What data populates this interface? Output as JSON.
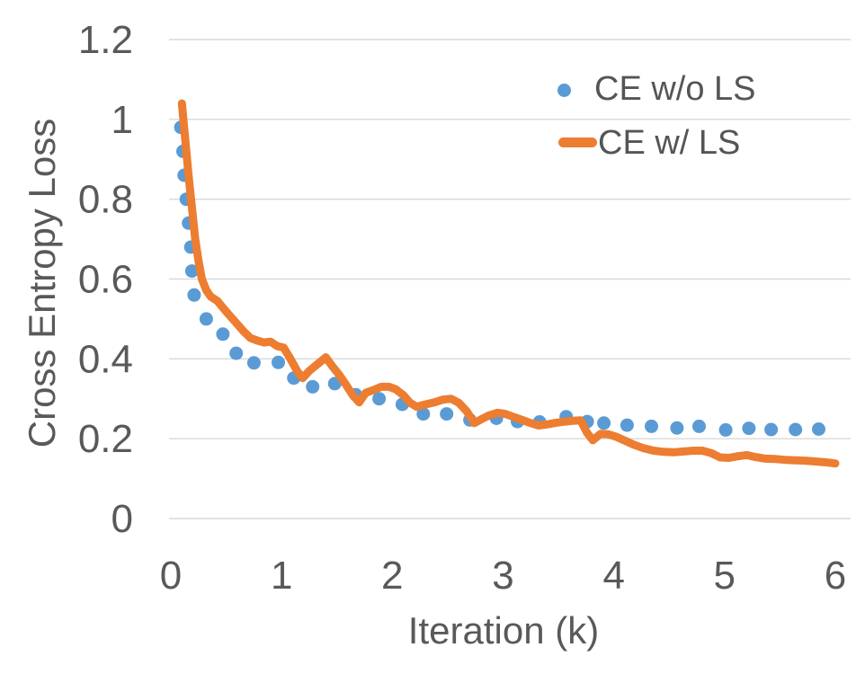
{
  "chart_data": {
    "type": "line",
    "title": "",
    "xlabel": "Iteration (k)",
    "ylabel": "Cross Entropy Loss",
    "xlim": [
      0,
      6
    ],
    "ylim": [
      0,
      1.2
    ],
    "grid": "horizontal",
    "legend_position": "top-right-inside",
    "colors": {
      "text": "#595959",
      "gridline": "#D9D9D9",
      "background": "#FFFFFF",
      "series_blue": "#5B9BD5",
      "series_orange": "#ED7D31"
    },
    "x_ticks": [
      {
        "value": 0,
        "label": "0"
      },
      {
        "value": 1,
        "label": "1"
      },
      {
        "value": 2,
        "label": "2"
      },
      {
        "value": 3,
        "label": "3"
      },
      {
        "value": 4,
        "label": "4"
      },
      {
        "value": 5,
        "label": "5"
      },
      {
        "value": 6,
        "label": "6"
      }
    ],
    "y_ticks": [
      {
        "value": 0,
        "label": "0"
      },
      {
        "value": 0.2,
        "label": "0.2"
      },
      {
        "value": 0.4,
        "label": "0.4"
      },
      {
        "value": 0.6,
        "label": "0.6"
      },
      {
        "value": 0.8,
        "label": "0.8"
      },
      {
        "value": 1,
        "label": "1"
      },
      {
        "value": 1.2,
        "label": "1.2"
      }
    ],
    "series": [
      {
        "name": "CE w/o LS",
        "type": "scatter",
        "color": "#5B9BD5",
        "marker_radius": 7.5,
        "points": [
          [
            0.09,
            0.98
          ],
          [
            0.11,
            0.92
          ],
          [
            0.12,
            0.86
          ],
          [
            0.14,
            0.8
          ],
          [
            0.16,
            0.74
          ],
          [
            0.18,
            0.68
          ],
          [
            0.19,
            0.62
          ],
          [
            0.21,
            0.56
          ],
          [
            0.32,
            0.5
          ],
          [
            0.47,
            0.462
          ],
          [
            0.59,
            0.414
          ],
          [
            0.75,
            0.39
          ],
          [
            0.97,
            0.391
          ],
          [
            1.11,
            0.352
          ],
          [
            1.28,
            0.33
          ],
          [
            1.48,
            0.338
          ],
          [
            1.67,
            0.31
          ],
          [
            1.88,
            0.3
          ],
          [
            2.09,
            0.286
          ],
          [
            2.28,
            0.262
          ],
          [
            2.49,
            0.262
          ],
          [
            2.7,
            0.247
          ],
          [
            2.94,
            0.251
          ],
          [
            3.13,
            0.243
          ],
          [
            3.33,
            0.242
          ],
          [
            3.57,
            0.255
          ],
          [
            3.76,
            0.243
          ],
          [
            3.91,
            0.239
          ],
          [
            4.12,
            0.234
          ],
          [
            4.34,
            0.231
          ],
          [
            4.57,
            0.227
          ],
          [
            4.77,
            0.231
          ],
          [
            5.01,
            0.222
          ],
          [
            5.22,
            0.226
          ],
          [
            5.42,
            0.223
          ],
          [
            5.64,
            0.223
          ],
          [
            5.85,
            0.224
          ]
        ]
      },
      {
        "name": "CE w/ LS",
        "type": "line",
        "color": "#ED7D31",
        "stroke_width": 9,
        "points": [
          [
            0.1,
            1.04
          ],
          [
            0.13,
            0.95
          ],
          [
            0.16,
            0.86
          ],
          [
            0.19,
            0.78
          ],
          [
            0.22,
            0.7
          ],
          [
            0.25,
            0.645
          ],
          [
            0.28,
            0.6
          ],
          [
            0.32,
            0.572
          ],
          [
            0.36,
            0.556
          ],
          [
            0.42,
            0.545
          ],
          [
            0.48,
            0.525
          ],
          [
            0.54,
            0.506
          ],
          [
            0.6,
            0.487
          ],
          [
            0.66,
            0.468
          ],
          [
            0.72,
            0.452
          ],
          [
            0.78,
            0.446
          ],
          [
            0.84,
            0.441
          ],
          [
            0.9,
            0.443
          ],
          [
            0.96,
            0.432
          ],
          [
            1.02,
            0.428
          ],
          [
            1.08,
            0.4
          ],
          [
            1.14,
            0.37
          ],
          [
            1.19,
            0.352
          ],
          [
            1.25,
            0.37
          ],
          [
            1.32,
            0.386
          ],
          [
            1.4,
            0.404
          ],
          [
            1.46,
            0.381
          ],
          [
            1.52,
            0.36
          ],
          [
            1.58,
            0.336
          ],
          [
            1.64,
            0.31
          ],
          [
            1.7,
            0.291
          ],
          [
            1.76,
            0.315
          ],
          [
            1.83,
            0.322
          ],
          [
            1.9,
            0.33
          ],
          [
            1.97,
            0.33
          ],
          [
            2.03,
            0.324
          ],
          [
            2.1,
            0.309
          ],
          [
            2.16,
            0.29
          ],
          [
            2.22,
            0.28
          ],
          [
            2.3,
            0.286
          ],
          [
            2.38,
            0.291
          ],
          [
            2.46,
            0.298
          ],
          [
            2.53,
            0.3
          ],
          [
            2.6,
            0.29
          ],
          [
            2.67,
            0.269
          ],
          [
            2.74,
            0.239
          ],
          [
            2.8,
            0.248
          ],
          [
            2.87,
            0.258
          ],
          [
            2.95,
            0.265
          ],
          [
            3.02,
            0.262
          ],
          [
            3.08,
            0.256
          ],
          [
            3.16,
            0.248
          ],
          [
            3.24,
            0.24
          ],
          [
            3.32,
            0.233
          ],
          [
            3.4,
            0.236
          ],
          [
            3.48,
            0.24
          ],
          [
            3.56,
            0.243
          ],
          [
            3.63,
            0.245
          ],
          [
            3.7,
            0.246
          ],
          [
            3.76,
            0.214
          ],
          [
            3.81,
            0.196
          ],
          [
            3.88,
            0.212
          ],
          [
            3.95,
            0.211
          ],
          [
            4.02,
            0.205
          ],
          [
            4.1,
            0.195
          ],
          [
            4.18,
            0.185
          ],
          [
            4.27,
            0.176
          ],
          [
            4.36,
            0.17
          ],
          [
            4.45,
            0.167
          ],
          [
            4.54,
            0.166
          ],
          [
            4.63,
            0.168
          ],
          [
            4.72,
            0.17
          ],
          [
            4.8,
            0.17
          ],
          [
            4.88,
            0.164
          ],
          [
            4.96,
            0.153
          ],
          [
            5.04,
            0.152
          ],
          [
            5.12,
            0.156
          ],
          [
            5.2,
            0.159
          ],
          [
            5.28,
            0.154
          ],
          [
            5.37,
            0.15
          ],
          [
            5.46,
            0.149
          ],
          [
            5.55,
            0.147
          ],
          [
            5.64,
            0.146
          ],
          [
            5.73,
            0.145
          ],
          [
            5.82,
            0.143
          ],
          [
            5.91,
            0.141
          ],
          [
            6.0,
            0.138
          ]
        ]
      }
    ]
  }
}
